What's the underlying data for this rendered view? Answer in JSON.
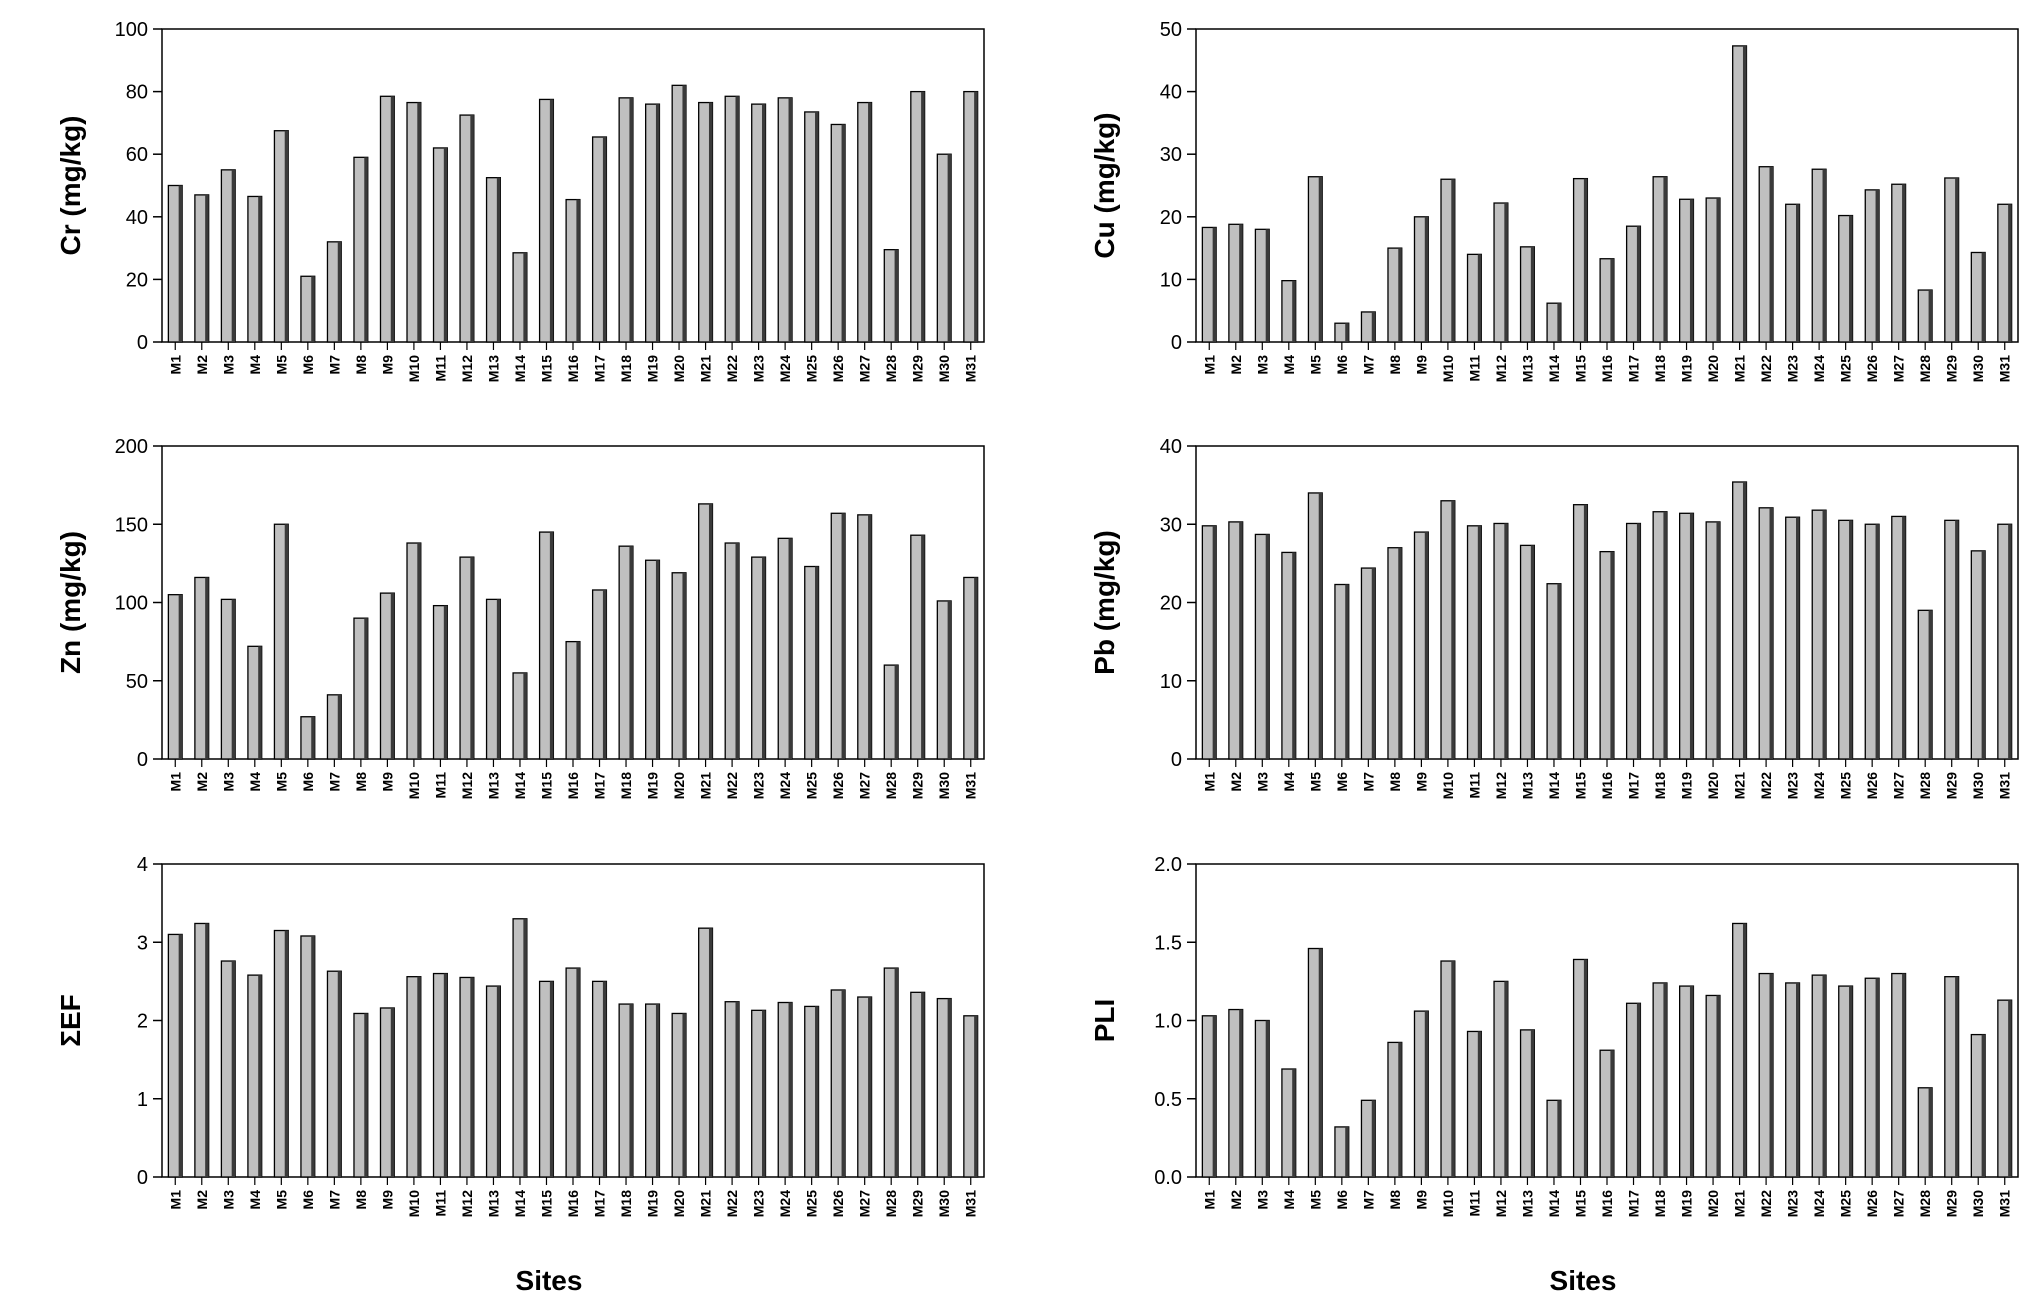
{
  "figure": {
    "bar_fill": "#c0c0c0",
    "bar_stroke": "#000000",
    "bar_shadow": "#3a3a3a",
    "axis_color": "#000000"
  },
  "chart_data": [
    {
      "type": "bar",
      "panel": "top-left",
      "ylabel": "Cr (mg/kg)",
      "xlabel": "",
      "ylim": [
        0,
        100
      ],
      "yticks": [
        "0",
        "20",
        "40",
        "60",
        "80",
        "100"
      ],
      "grid": false,
      "categories": [
        "M1",
        "M2",
        "M3",
        "M4",
        "M5",
        "M6",
        "M7",
        "M8",
        "M9",
        "M10",
        "M11",
        "M12",
        "M13",
        "M14",
        "M15",
        "M16",
        "M17",
        "M18",
        "M19",
        "M20",
        "M21",
        "M22",
        "M23",
        "M24",
        "M25",
        "M26",
        "M27",
        "M28",
        "M29",
        "M30",
        "M31"
      ],
      "values": [
        50,
        47,
        55,
        46.5,
        67.5,
        21,
        32,
        59,
        78.5,
        76.5,
        62,
        72.5,
        52.5,
        28.5,
        77.5,
        45.5,
        65.5,
        78,
        76,
        82,
        76.5,
        78.5,
        76,
        78,
        73.5,
        69.5,
        76.5,
        29.5,
        80,
        60,
        80
      ]
    },
    {
      "type": "bar",
      "panel": "top-right",
      "ylabel": "Cu (mg/kg)",
      "xlabel": "",
      "ylim": [
        0,
        50
      ],
      "yticks": [
        "0",
        "10",
        "20",
        "30",
        "40",
        "50"
      ],
      "grid": false,
      "categories": [
        "M1",
        "M2",
        "M3",
        "M4",
        "M5",
        "M6",
        "M7",
        "M8",
        "M9",
        "M10",
        "M11",
        "M12",
        "M13",
        "M14",
        "M15",
        "M16",
        "M17",
        "M18",
        "M19",
        "M20",
        "M21",
        "M22",
        "M23",
        "M24",
        "M25",
        "M26",
        "M27",
        "M28",
        "M29",
        "M30",
        "M31"
      ],
      "values": [
        18.3,
        18.8,
        18,
        9.8,
        26.4,
        3,
        4.8,
        15,
        20,
        26,
        14,
        22.2,
        15.2,
        6.2,
        26.1,
        13.3,
        18.5,
        26.4,
        22.8,
        23,
        47.3,
        28,
        22,
        27.6,
        20.2,
        24.3,
        25.2,
        8.3,
        26.2,
        14.3,
        22
      ]
    },
    {
      "type": "bar",
      "panel": "middle-left",
      "ylabel": "Zn (mg/kg)",
      "xlabel": "",
      "ylim": [
        0,
        200
      ],
      "yticks": [
        "0",
        "50",
        "100",
        "150",
        "200"
      ],
      "grid": false,
      "categories": [
        "M1",
        "M2",
        "M3",
        "M4",
        "M5",
        "M6",
        "M7",
        "M8",
        "M9",
        "M10",
        "M11",
        "M12",
        "M13",
        "M14",
        "M15",
        "M16",
        "M17",
        "M18",
        "M19",
        "M20",
        "M21",
        "M22",
        "M23",
        "M24",
        "M25",
        "M26",
        "M27",
        "M28",
        "M29",
        "M30",
        "M31"
      ],
      "values": [
        105,
        116,
        102,
        72,
        150,
        27,
        41,
        90,
        106,
        138,
        98,
        129,
        102,
        55,
        145,
        75,
        108,
        136,
        127,
        119,
        163,
        138,
        129,
        141,
        123,
        157,
        156,
        60,
        143,
        101,
        116
      ]
    },
    {
      "type": "bar",
      "panel": "middle-right",
      "ylabel": "Pb (mg/kg)",
      "xlabel": "",
      "ylim": [
        0,
        40
      ],
      "yticks": [
        "0",
        "10",
        "20",
        "30",
        "40"
      ],
      "grid": false,
      "categories": [
        "M1",
        "M2",
        "M3",
        "M4",
        "M5",
        "M6",
        "M7",
        "M8",
        "M9",
        "M10",
        "M11",
        "M12",
        "M13",
        "M14",
        "M15",
        "M16",
        "M17",
        "M18",
        "M19",
        "M20",
        "M21",
        "M22",
        "M23",
        "M24",
        "M25",
        "M26",
        "M27",
        "M28",
        "M29",
        "M30",
        "M31"
      ],
      "values": [
        29.8,
        30.3,
        28.7,
        26.4,
        34,
        22.3,
        24.4,
        27,
        29,
        33,
        29.8,
        30.1,
        27.3,
        22.4,
        32.5,
        26.5,
        30.1,
        31.6,
        31.4,
        30.3,
        35.4,
        32.1,
        30.9,
        31.8,
        30.5,
        30,
        31,
        19,
        30.5,
        26.6,
        30
      ]
    },
    {
      "type": "bar",
      "panel": "bottom-left",
      "ylabel": "ΣEF",
      "xlabel": "Sites",
      "ylim": [
        0,
        4
      ],
      "yticks": [
        "0",
        "1",
        "2",
        "3",
        "4"
      ],
      "grid": false,
      "categories": [
        "M1",
        "M2",
        "M3",
        "M4",
        "M5",
        "M6",
        "M7",
        "M8",
        "M9",
        "M10",
        "M11",
        "M12",
        "M13",
        "M14",
        "M15",
        "M16",
        "M17",
        "M18",
        "M19",
        "M20",
        "M21",
        "M22",
        "M23",
        "M24",
        "M25",
        "M26",
        "M27",
        "M28",
        "M29",
        "M30",
        "M31"
      ],
      "values": [
        3.1,
        3.24,
        2.76,
        2.58,
        3.15,
        3.08,
        2.63,
        2.09,
        2.16,
        2.56,
        2.6,
        2.55,
        2.44,
        3.3,
        2.5,
        2.67,
        2.5,
        2.21,
        2.21,
        2.09,
        3.18,
        2.24,
        2.13,
        2.23,
        2.18,
        2.39,
        2.3,
        2.67,
        2.36,
        2.28,
        2.06
      ]
    },
    {
      "type": "bar",
      "panel": "bottom-right",
      "ylabel": "PLI",
      "xlabel": "Sites",
      "ylim": [
        0,
        2
      ],
      "yticks": [
        "0.0",
        "0.5",
        "1.0",
        "1.5",
        "2.0"
      ],
      "grid": false,
      "categories": [
        "M1",
        "M2",
        "M3",
        "M4",
        "M5",
        "M6",
        "M7",
        "M8",
        "M9",
        "M10",
        "M11",
        "M12",
        "M13",
        "M14",
        "M15",
        "M16",
        "M17",
        "M18",
        "M19",
        "M20",
        "M21",
        "M22",
        "M23",
        "M24",
        "M25",
        "M26",
        "M27",
        "M28",
        "M29",
        "M30",
        "M31"
      ],
      "values": [
        1.03,
        1.07,
        1.0,
        0.69,
        1.46,
        0.32,
        0.49,
        0.86,
        1.06,
        1.38,
        0.93,
        1.25,
        0.94,
        0.49,
        1.39,
        0.81,
        1.11,
        1.24,
        1.22,
        1.16,
        1.62,
        1.3,
        1.24,
        1.29,
        1.22,
        1.27,
        1.3,
        0.57,
        1.28,
        0.91,
        1.13
      ]
    }
  ]
}
